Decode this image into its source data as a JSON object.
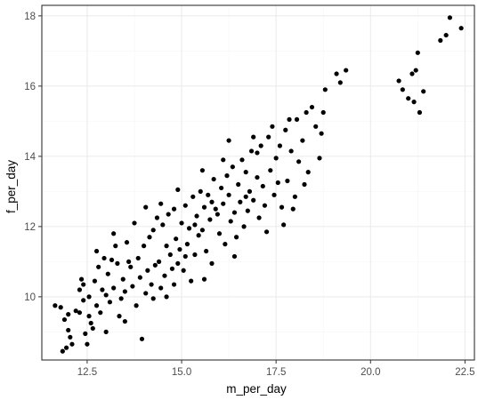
{
  "chart_data": {
    "type": "scatter",
    "title": "",
    "xlabel": "m_per_day",
    "ylabel": "f_per_day",
    "xlim": [
      11.3,
      22.75
    ],
    "ylim": [
      8.2,
      18.3
    ],
    "xticks": [
      12.5,
      15.0,
      17.5,
      20.0,
      22.5
    ],
    "xtick_labels": [
      "12.5",
      "15.0",
      "17.5",
      "20.0",
      "22.5"
    ],
    "yticks": [
      10,
      12,
      14,
      16,
      18
    ],
    "ytick_labels": [
      "10",
      "12",
      "14",
      "16",
      "18"
    ],
    "grid": true,
    "colors": {
      "point": "#000000",
      "grid_major": "#ebebeb",
      "grid_minor": "#f5f5f5",
      "panel_border": "#333333",
      "tick_text": "#4d4d4d"
    },
    "series": [
      {
        "points": [
          [
            11.65,
            9.75
          ],
          [
            11.8,
            9.7
          ],
          [
            11.9,
            9.35
          ],
          [
            12.0,
            9.5
          ],
          [
            11.95,
            8.55
          ],
          [
            11.85,
            8.45
          ],
          [
            12.05,
            8.85
          ],
          [
            12.1,
            8.65
          ],
          [
            12.0,
            9.05
          ],
          [
            12.2,
            9.6
          ],
          [
            12.3,
            9.55
          ],
          [
            12.4,
            9.9
          ],
          [
            12.45,
            8.95
          ],
          [
            12.5,
            8.65
          ],
          [
            12.3,
            10.2
          ],
          [
            12.4,
            10.35
          ],
          [
            12.55,
            10.0
          ],
          [
            12.6,
            9.25
          ],
          [
            12.7,
            10.45
          ],
          [
            12.75,
            9.75
          ],
          [
            12.8,
            10.85
          ],
          [
            12.65,
            9.1
          ],
          [
            12.9,
            10.2
          ],
          [
            12.95,
            11.1
          ],
          [
            13.0,
            10.05
          ],
          [
            13.1,
            9.85
          ],
          [
            13.2,
            10.25
          ],
          [
            13.25,
            11.45
          ],
          [
            13.3,
            10.95
          ],
          [
            13.35,
            9.45
          ],
          [
            13.45,
            10.5
          ],
          [
            13.5,
            10.15
          ],
          [
            13.55,
            11.55
          ],
          [
            13.6,
            11.0
          ],
          [
            13.7,
            10.3
          ],
          [
            13.75,
            12.1
          ],
          [
            13.8,
            9.75
          ],
          [
            13.85,
            11.1
          ],
          [
            13.9,
            10.55
          ],
          [
            13.95,
            8.8
          ],
          [
            14.0,
            11.45
          ],
          [
            14.05,
            10.1
          ],
          [
            14.1,
            10.75
          ],
          [
            14.15,
            11.7
          ],
          [
            14.2,
            10.35
          ],
          [
            14.25,
            11.9
          ],
          [
            14.3,
            10.9
          ],
          [
            14.35,
            12.25
          ],
          [
            14.4,
            11.0
          ],
          [
            14.45,
            10.25
          ],
          [
            14.5,
            12.05
          ],
          [
            14.55,
            10.6
          ],
          [
            14.6,
            11.45
          ],
          [
            14.65,
            12.35
          ],
          [
            14.7,
            11.2
          ],
          [
            14.75,
            10.8
          ],
          [
            14.8,
            12.5
          ],
          [
            14.85,
            11.65
          ],
          [
            14.9,
            10.95
          ],
          [
            14.95,
            11.35
          ],
          [
            15.0,
            12.1
          ],
          [
            15.05,
            10.75
          ],
          [
            15.1,
            12.6
          ],
          [
            15.15,
            11.5
          ],
          [
            15.2,
            11.95
          ],
          [
            15.25,
            10.45
          ],
          [
            15.3,
            12.85
          ],
          [
            15.35,
            11.2
          ],
          [
            15.4,
            12.3
          ],
          [
            15.45,
            11.75
          ],
          [
            15.5,
            13.0
          ],
          [
            15.55,
            11.9
          ],
          [
            15.6,
            12.55
          ],
          [
            15.65,
            11.3
          ],
          [
            15.7,
            12.9
          ],
          [
            15.75,
            12.2
          ],
          [
            15.8,
            10.95
          ],
          [
            15.85,
            13.35
          ],
          [
            15.9,
            12.5
          ],
          [
            16.0,
            11.8
          ],
          [
            16.05,
            13.1
          ],
          [
            16.1,
            12.65
          ],
          [
            16.15,
            11.5
          ],
          [
            16.2,
            13.45
          ],
          [
            16.25,
            12.9
          ],
          [
            16.3,
            12.15
          ],
          [
            16.35,
            13.7
          ],
          [
            16.4,
            12.4
          ],
          [
            16.45,
            11.7
          ],
          [
            16.5,
            13.2
          ],
          [
            16.55,
            12.7
          ],
          [
            16.6,
            13.9
          ],
          [
            16.65,
            12.0
          ],
          [
            16.7,
            13.55
          ],
          [
            16.75,
            12.45
          ],
          [
            16.8,
            13.0
          ],
          [
            16.85,
            14.15
          ],
          [
            16.9,
            12.75
          ],
          [
            17.0,
            13.4
          ],
          [
            17.05,
            12.25
          ],
          [
            17.1,
            14.3
          ],
          [
            17.15,
            13.15
          ],
          [
            17.2,
            12.6
          ],
          [
            17.3,
            14.55
          ],
          [
            17.35,
            13.6
          ],
          [
            17.45,
            12.9
          ],
          [
            17.5,
            13.95
          ],
          [
            17.6,
            14.3
          ],
          [
            17.65,
            12.55
          ],
          [
            17.75,
            14.75
          ],
          [
            17.8,
            13.3
          ],
          [
            17.9,
            14.15
          ],
          [
            17.95,
            12.5
          ],
          [
            18.05,
            15.05
          ],
          [
            18.1,
            13.85
          ],
          [
            18.2,
            14.45
          ],
          [
            18.3,
            15.25
          ],
          [
            18.35,
            13.55
          ],
          [
            18.45,
            15.4
          ],
          [
            18.55,
            14.85
          ],
          [
            18.65,
            13.95
          ],
          [
            18.7,
            14.65
          ],
          [
            18.75,
            15.25
          ],
          [
            18.8,
            15.9
          ],
          [
            19.1,
            16.35
          ],
          [
            19.2,
            16.1
          ],
          [
            19.35,
            16.45
          ],
          [
            20.75,
            16.15
          ],
          [
            20.85,
            15.9
          ],
          [
            21.0,
            15.65
          ],
          [
            21.1,
            16.35
          ],
          [
            21.15,
            15.55
          ],
          [
            21.2,
            16.45
          ],
          [
            21.25,
            16.95
          ],
          [
            21.3,
            15.25
          ],
          [
            21.4,
            15.85
          ],
          [
            21.85,
            17.3
          ],
          [
            22.0,
            17.45
          ],
          [
            22.1,
            17.95
          ],
          [
            22.4,
            17.65
          ],
          [
            12.35,
            10.5
          ],
          [
            12.85,
            9.55
          ],
          [
            13.05,
            10.65
          ],
          [
            13.15,
            11.05
          ],
          [
            13.4,
            9.95
          ],
          [
            13.65,
            10.85
          ],
          [
            14.05,
            12.55
          ],
          [
            14.25,
            9.95
          ],
          [
            14.6,
            10.0
          ],
          [
            14.9,
            13.05
          ],
          [
            15.1,
            11.15
          ],
          [
            15.35,
            12.05
          ],
          [
            15.6,
            10.5
          ],
          [
            15.8,
            12.7
          ],
          [
            16.1,
            13.9
          ],
          [
            16.4,
            11.15
          ],
          [
            16.7,
            12.85
          ],
          [
            17.0,
            14.1
          ],
          [
            17.25,
            11.85
          ],
          [
            17.55,
            13.25
          ],
          [
            17.85,
            15.05
          ],
          [
            18.0,
            12.85
          ],
          [
            18.25,
            13.2
          ],
          [
            17.4,
            14.85
          ],
          [
            16.9,
            14.55
          ],
          [
            15.55,
            13.6
          ],
          [
            14.45,
            12.65
          ],
          [
            13.2,
            11.8
          ],
          [
            12.75,
            11.3
          ],
          [
            13.5,
            9.3
          ],
          [
            13.0,
            9.0
          ],
          [
            12.55,
            9.45
          ],
          [
            14.8,
            10.35
          ],
          [
            15.95,
            12.35
          ],
          [
            16.25,
            14.45
          ],
          [
            17.7,
            12.05
          ]
        ]
      }
    ]
  }
}
